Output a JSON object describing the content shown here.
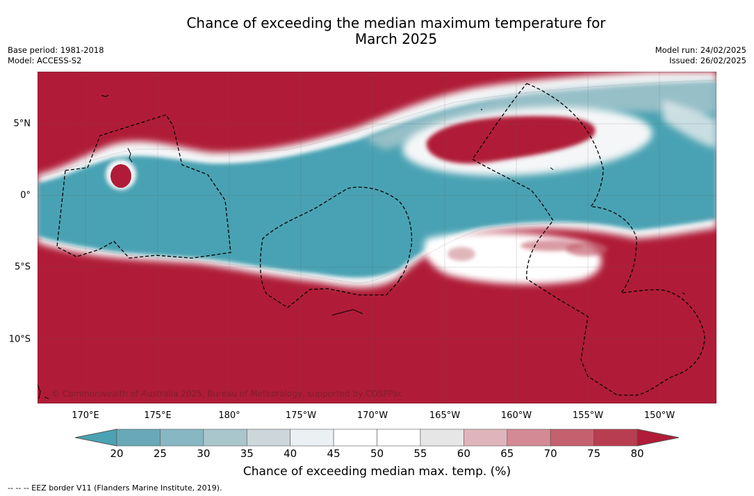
{
  "title": {
    "line1": "Chance of exceeding the median maximum temperature for",
    "line2": "March 2025"
  },
  "meta": {
    "base_period": "Base period: 1981-2018",
    "model": "Model: ACCESS-S2",
    "model_run": "Model run: 24/02/2025",
    "issued": "Issued: 26/02/2025"
  },
  "map": {
    "credit": "© Commonwealth of Australia 2025, Bureau of Meteorology, supported by COSPPac",
    "lon_labels": [
      "170°E",
      "175°E",
      "180°",
      "175°W",
      "170°W",
      "165°W",
      "160°W",
      "155°W",
      "150°W"
    ],
    "lat_labels": [
      "5°N",
      "0°",
      "5°S",
      "10°S"
    ],
    "colors": {
      "warm": "#b01c37",
      "cool": "#4aa2b3",
      "neutral": "#ffffff"
    }
  },
  "colorbar": {
    "ticks": [
      "20",
      "25",
      "30",
      "35",
      "40",
      "45",
      "50",
      "55",
      "60",
      "65",
      "70",
      "75",
      "80"
    ],
    "colors": [
      "#4aa2b3",
      "#68a8b8",
      "#86b7c3",
      "#a9c6cc",
      "#cdd6da",
      "#ebf0f3",
      "#ffffff",
      "#ffffff",
      "#e6e6e6",
      "#dfb5bb",
      "#d48a94",
      "#c5606f",
      "#b93d51",
      "#b01c37"
    ],
    "title": "Chance of exceeding median max. temp. (%)"
  },
  "footnote": "-- -- -- EEZ border V11 (Flanders Marine Institute, 2019)."
}
